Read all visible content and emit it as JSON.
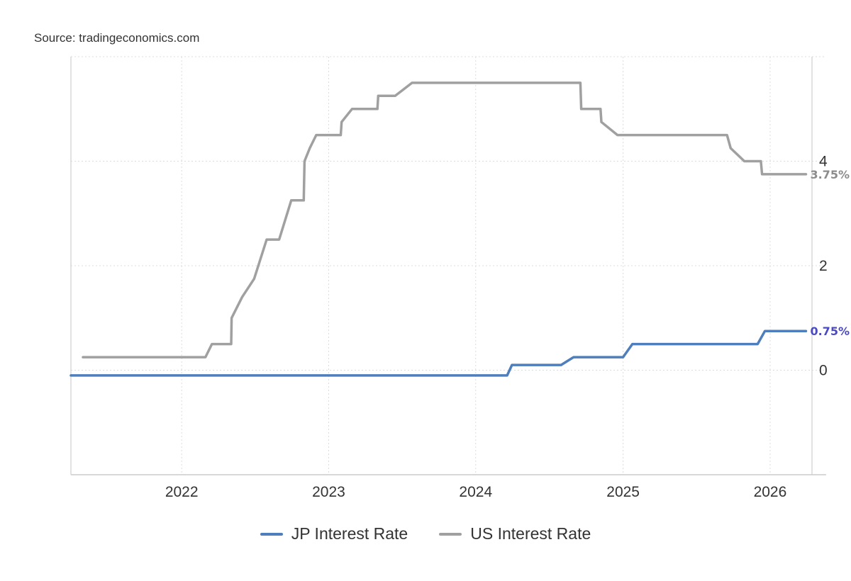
{
  "source": "Source: tradingeconomics.com",
  "chart_data": {
    "type": "line",
    "title": "",
    "xlabel": "",
    "ylabel": "",
    "xlim": [
      "2021-04-01",
      "2026-04-15"
    ],
    "ylim": [
      -2,
      6
    ],
    "yticks": [
      0,
      2,
      4
    ],
    "ytick_labels": [
      "0",
      "2",
      "4"
    ],
    "xticks": [
      "2022-01-01",
      "2023-01-01",
      "2024-01-01",
      "2025-01-01",
      "2026-01-01"
    ],
    "xtick_labels": [
      "2022",
      "2023",
      "2024",
      "2025",
      "2026"
    ],
    "grid": true,
    "legend_position": "bottom-center",
    "series": [
      {
        "name": "JP Interest Rate",
        "color": "#4e7ebb",
        "end_label": "0.75%",
        "end_label_color": "#4a4ac4",
        "x": [
          "2021-04-01",
          "2024-03-19",
          "2024-03-31",
          "2024-07-31",
          "2024-08-31",
          "2025-01-01",
          "2025-01-24",
          "2025-12-01",
          "2025-12-19",
          "2026-03-31"
        ],
        "y": [
          -0.1,
          -0.1,
          0.1,
          0.1,
          0.25,
          0.25,
          0.5,
          0.5,
          0.75,
          0.75
        ]
      },
      {
        "name": "US Interest Rate",
        "color": "#a0a0a0",
        "end_label": "3.75%",
        "end_label_color": "#8c8c8c",
        "x": [
          "2021-05-01",
          "2022-03-01",
          "2022-03-17",
          "2022-05-04",
          "2022-05-05",
          "2022-05-31",
          "2022-06-30",
          "2022-07-31",
          "2022-08-31",
          "2022-09-30",
          "2022-10-31",
          "2022-11-02",
          "2022-11-15",
          "2022-12-01",
          "2022-12-15",
          "2023-01-31",
          "2023-02-02",
          "2023-02-28",
          "2023-03-22",
          "2023-05-02",
          "2023-05-04",
          "2023-06-15",
          "2023-07-27",
          "2024-09-17",
          "2024-09-19",
          "2024-11-06",
          "2024-11-08",
          "2024-12-18",
          "2024-12-20",
          "2025-09-16",
          "2025-09-25",
          "2025-10-29",
          "2025-10-31",
          "2025-12-09",
          "2025-12-12",
          "2026-03-31"
        ],
        "y": [
          0.25,
          0.25,
          0.5,
          0.5,
          1.0,
          1.4,
          1.75,
          2.5,
          2.5,
          3.25,
          3.25,
          4.0,
          4.25,
          4.5,
          4.5,
          4.5,
          4.75,
          5.0,
          5.0,
          5.0,
          5.25,
          5.25,
          5.5,
          5.5,
          5.0,
          5.0,
          4.75,
          4.5,
          4.5,
          4.5,
          4.25,
          4.0,
          4.0,
          4.0,
          3.75,
          3.75
        ]
      }
    ]
  }
}
